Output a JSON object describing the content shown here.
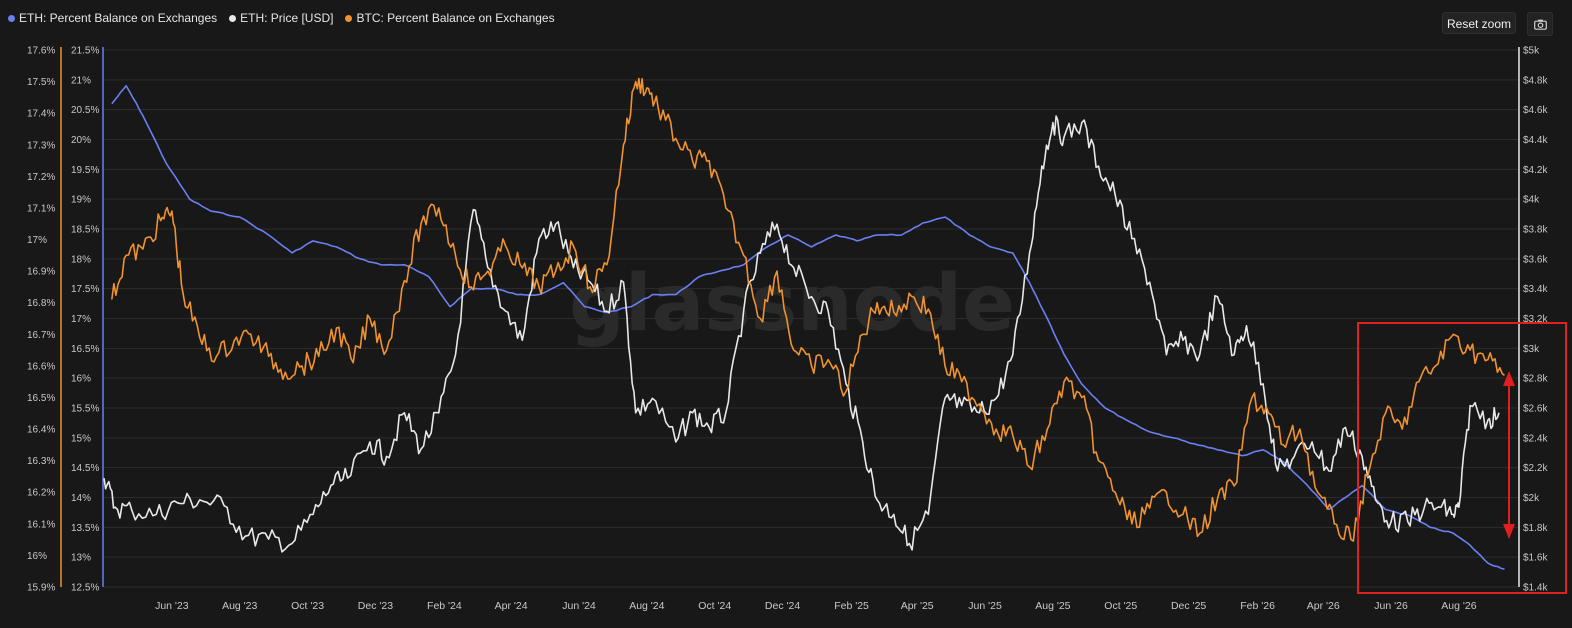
{
  "legend": [
    {
      "label": "ETH: Percent Balance on Exchanges",
      "color": "#6a7ff2"
    },
    {
      "label": "ETH: Price [USD]",
      "color": "#e8e8e8"
    },
    {
      "label": "BTC: Percent Balance on Exchanges",
      "color": "#f0922e"
    }
  ],
  "toolbar": {
    "reset_zoom_label": "Reset zoom",
    "camera_icon": "camera-icon"
  },
  "watermark": "glassnode",
  "colors": {
    "background": "#181818",
    "grid": "#2c2c2c",
    "eth_balance": "#6a7ff2",
    "eth_price": "#e8e8e8",
    "btc_balance": "#f0922e",
    "highlight": "#e02020"
  },
  "chart_data": {
    "type": "line",
    "x_range": [
      "2023-04-15",
      "2026-10-08"
    ],
    "x_ticks": [
      {
        "date": "2023-06-15",
        "label": "Jun '23"
      },
      {
        "date": "2023-08-15",
        "label": "Aug '23"
      },
      {
        "date": "2023-10-15",
        "label": "Oct '23"
      },
      {
        "date": "2023-12-15",
        "label": "Dec '23"
      },
      {
        "date": "2024-02-15",
        "label": "Feb '24"
      },
      {
        "date": "2024-04-15",
        "label": "Apr '24"
      },
      {
        "date": "2024-06-15",
        "label": "Jun '24"
      },
      {
        "date": "2024-08-15",
        "label": "Aug '24"
      },
      {
        "date": "2024-10-15",
        "label": "Oct '24"
      },
      {
        "date": "2024-12-15",
        "label": "Dec '24"
      },
      {
        "date": "2025-02-15",
        "label": "Feb '25"
      },
      {
        "date": "2025-04-15",
        "label": "Apr '25"
      },
      {
        "date": "2025-06-15",
        "label": "Jun '25"
      },
      {
        "date": "2025-08-15",
        "label": "Aug '25"
      },
      {
        "date": "2025-10-15",
        "label": "Oct '25"
      },
      {
        "date": "2025-12-15",
        "label": "Dec '25"
      },
      {
        "date": "2026-02-15",
        "label": "Feb '26"
      },
      {
        "date": "2026-04-15",
        "label": "Apr '26"
      },
      {
        "date": "2026-06-15",
        "label": "Jun '26"
      },
      {
        "date": "2026-08-15",
        "label": "Aug '26"
      }
    ],
    "axes": {
      "btc_balance": {
        "position": "left-outer",
        "min": 15.9,
        "max": 17.6,
        "ticks": [
          "17.6%",
          "17.5%",
          "17.4%",
          "17.3%",
          "17.2%",
          "17.1%",
          "17%",
          "16.9%",
          "16.8%",
          "16.7%",
          "16.6%",
          "16.5%",
          "16.4%",
          "16.3%",
          "16.2%",
          "16.1%",
          "16%",
          "15.9%"
        ]
      },
      "eth_balance": {
        "position": "left-inner",
        "min": 12.5,
        "max": 21.5,
        "ticks": [
          "21.5%",
          "21%",
          "20.5%",
          "20%",
          "19.5%",
          "19%",
          "18.5%",
          "18%",
          "17.5%",
          "17%",
          "16.5%",
          "16%",
          "15.5%",
          "15%",
          "14.5%",
          "14%",
          "13.5%",
          "13%",
          "12.5%"
        ]
      },
      "eth_price": {
        "position": "right",
        "min": 1300,
        "max": 5000,
        "ticks": [
          "$5k",
          "$4.8k",
          "$4.6k",
          "$4.4k",
          "$4.2k",
          "$4k",
          "$3.8k",
          "$3.6k",
          "$3.4k",
          "$3.2k",
          "$3k",
          "$2.8k",
          "$2.6k",
          "$2.4k",
          "$2.2k",
          "$2k",
          "$1.8k",
          "$1.6k",
          "$1.4k"
        ]
      }
    },
    "grid": true,
    "legend_placement": "top-left",
    "series": [
      {
        "name": "ETH: Percent Balance on Exchanges",
        "axis": "eth_balance",
        "x": [
          "2023-04-22",
          "2023-05-05",
          "2023-05-20",
          "2023-06-10",
          "2023-07-01",
          "2023-07-20",
          "2023-08-15",
          "2023-09-10",
          "2023-10-01",
          "2023-10-20",
          "2023-11-10",
          "2023-12-01",
          "2023-12-20",
          "2024-01-10",
          "2024-02-01",
          "2024-02-20",
          "2024-03-10",
          "2024-04-01",
          "2024-04-20",
          "2024-05-10",
          "2024-06-01",
          "2024-06-20",
          "2024-07-10",
          "2024-08-01",
          "2024-08-20",
          "2024-09-10",
          "2024-10-01",
          "2024-10-20",
          "2024-11-10",
          "2024-12-01",
          "2024-12-20",
          "2025-01-10",
          "2025-02-01",
          "2025-02-20",
          "2025-03-10",
          "2025-04-01",
          "2025-04-20",
          "2025-05-10",
          "2025-06-01",
          "2025-06-20",
          "2025-07-10",
          "2025-07-25",
          "2025-08-10",
          "2025-08-25",
          "2025-09-10",
          "2025-10-01",
          "2025-10-20",
          "2025-11-10",
          "2025-12-01",
          "2025-12-20",
          "2026-01-10",
          "2026-02-01",
          "2026-02-20",
          "2026-03-10",
          "2026-04-01",
          "2026-04-20",
          "2026-05-05",
          "2026-05-20",
          "2026-06-10",
          "2026-07-01",
          "2026-07-20",
          "2026-08-10",
          "2026-08-25",
          "2026-09-10",
          "2026-09-25"
        ],
        "values": [
          20.6,
          20.9,
          20.4,
          19.6,
          19.0,
          18.8,
          18.7,
          18.4,
          18.1,
          18.3,
          18.2,
          18.0,
          17.9,
          17.9,
          17.7,
          17.2,
          17.5,
          17.5,
          17.4,
          17.4,
          17.6,
          17.2,
          17.1,
          17.2,
          17.4,
          17.4,
          17.7,
          17.8,
          17.9,
          18.2,
          18.4,
          18.2,
          18.4,
          18.3,
          18.4,
          18.4,
          18.6,
          18.7,
          18.4,
          18.2,
          18.1,
          17.6,
          17.0,
          16.4,
          15.9,
          15.5,
          15.3,
          15.1,
          15.0,
          14.9,
          14.8,
          14.7,
          14.8,
          14.6,
          14.2,
          13.8,
          14.0,
          14.2,
          13.8,
          13.7,
          13.5,
          13.4,
          13.2,
          12.9,
          12.8
        ]
      },
      {
        "name": "ETH: Price [USD]",
        "axis": "eth_price",
        "x": [
          "2023-04-15",
          "2023-04-25",
          "2023-05-10",
          "2023-06-01",
          "2023-06-20",
          "2023-07-10",
          "2023-08-01",
          "2023-08-20",
          "2023-09-10",
          "2023-10-01",
          "2023-10-20",
          "2023-11-05",
          "2023-11-20",
          "2023-12-10",
          "2023-12-25",
          "2024-01-10",
          "2024-01-25",
          "2024-02-10",
          "2024-02-25",
          "2024-03-12",
          "2024-03-25",
          "2024-04-10",
          "2024-04-25",
          "2024-05-10",
          "2024-05-25",
          "2024-06-10",
          "2024-06-25",
          "2024-07-10",
          "2024-07-25",
          "2024-08-05",
          "2024-08-20",
          "2024-09-10",
          "2024-09-25",
          "2024-10-10",
          "2024-10-25",
          "2024-11-10",
          "2024-11-25",
          "2024-12-10",
          "2024-12-25",
          "2025-01-10",
          "2025-01-25",
          "2025-02-10",
          "2025-02-25",
          "2025-03-10",
          "2025-03-25",
          "2025-04-08",
          "2025-04-25",
          "2025-05-10",
          "2025-05-25",
          "2025-06-10",
          "2025-06-25",
          "2025-07-10",
          "2025-07-25",
          "2025-08-05",
          "2025-08-15",
          "2025-08-25",
          "2025-09-10",
          "2025-09-25",
          "2025-10-10",
          "2025-10-25",
          "2025-11-10",
          "2025-11-25",
          "2025-12-10",
          "2025-12-25",
          "2026-01-10",
          "2026-01-25",
          "2026-02-05",
          "2026-02-20",
          "2026-03-05",
          "2026-03-20",
          "2026-04-05",
          "2026-04-20",
          "2026-05-05",
          "2026-05-20",
          "2026-06-01",
          "2026-06-15",
          "2026-06-30",
          "2026-07-15",
          "2026-07-30",
          "2026-08-10",
          "2026-08-15",
          "2026-08-25",
          "2026-09-10",
          "2026-09-20"
        ],
        "values": [
          2050,
          1850,
          1830,
          1800,
          1880,
          1900,
          1860,
          1650,
          1630,
          1600,
          1800,
          2000,
          2050,
          2300,
          2200,
          2500,
          2250,
          2500,
          2900,
          3900,
          3500,
          3200,
          3000,
          3700,
          3800,
          3500,
          3400,
          3200,
          3400,
          2500,
          2600,
          2300,
          2500,
          2400,
          2500,
          3200,
          3600,
          3800,
          3500,
          3300,
          3200,
          2700,
          2300,
          1900,
          1800,
          1600,
          1800,
          2600,
          2550,
          2500,
          2600,
          2900,
          3600,
          4200,
          4500,
          4400,
          4500,
          4200,
          4000,
          3700,
          3400,
          2900,
          3000,
          2900,
          3300,
          2900,
          3100,
          2700,
          2100,
          2200,
          2300,
          2100,
          2400,
          2200,
          1900,
          1750,
          1750,
          1850,
          1850,
          1800,
          1850,
          2550,
          2450,
          2500
        ]
      },
      {
        "name": "BTC: Percent Balance on Exchanges",
        "axis": "btc_balance",
        "x": [
          "2023-04-22",
          "2023-05-05",
          "2023-05-20",
          "2023-06-05",
          "2023-06-15",
          "2023-06-25",
          "2023-07-10",
          "2023-07-25",
          "2023-08-10",
          "2023-08-25",
          "2023-09-10",
          "2023-09-25",
          "2023-10-10",
          "2023-10-25",
          "2023-11-10",
          "2023-11-25",
          "2023-12-10",
          "2023-12-25",
          "2024-01-10",
          "2024-01-25",
          "2024-02-10",
          "2024-02-25",
          "2024-03-10",
          "2024-03-25",
          "2024-04-10",
          "2024-04-25",
          "2024-05-10",
          "2024-05-25",
          "2024-06-10",
          "2024-06-25",
          "2024-07-10",
          "2024-07-25",
          "2024-08-05",
          "2024-08-15",
          "2024-08-25",
          "2024-09-10",
          "2024-09-25",
          "2024-10-10",
          "2024-10-25",
          "2024-11-10",
          "2024-11-25",
          "2024-12-10",
          "2024-12-25",
          "2025-01-10",
          "2025-01-25",
          "2025-02-10",
          "2025-02-25",
          "2025-03-10",
          "2025-03-25",
          "2025-04-10",
          "2025-04-25",
          "2025-05-10",
          "2025-05-25",
          "2025-06-10",
          "2025-06-25",
          "2025-07-10",
          "2025-07-25",
          "2025-08-10",
          "2025-08-25",
          "2025-09-10",
          "2025-09-25",
          "2025-10-10",
          "2025-10-25",
          "2025-11-10",
          "2025-11-25",
          "2025-12-10",
          "2025-12-25",
          "2026-01-10",
          "2026-01-25",
          "2026-02-10",
          "2026-02-25",
          "2026-03-10",
          "2026-03-25",
          "2026-04-10",
          "2026-04-25",
          "2026-05-10",
          "2026-05-25",
          "2026-06-10",
          "2026-06-25",
          "2026-07-10",
          "2026-07-25",
          "2026-08-10",
          "2026-08-25",
          "2026-09-10",
          "2026-09-25"
        ],
        "values": [
          16.81,
          16.95,
          16.97,
          17.06,
          17.09,
          16.83,
          16.69,
          16.63,
          16.68,
          16.7,
          16.63,
          16.58,
          16.6,
          16.63,
          16.72,
          16.61,
          16.75,
          16.65,
          16.87,
          17.05,
          17.1,
          16.95,
          16.85,
          16.9,
          16.98,
          16.91,
          16.85,
          16.9,
          16.98,
          16.85,
          16.92,
          17.3,
          17.5,
          17.48,
          17.42,
          17.32,
          17.25,
          17.25,
          17.1,
          16.95,
          16.75,
          16.9,
          16.65,
          16.6,
          16.62,
          16.52,
          16.7,
          16.8,
          16.77,
          16.82,
          16.78,
          16.6,
          16.55,
          16.48,
          16.4,
          16.38,
          16.28,
          16.4,
          16.55,
          16.5,
          16.3,
          16.2,
          16.1,
          16.15,
          16.2,
          16.13,
          16.07,
          16.18,
          16.22,
          16.5,
          16.45,
          16.35,
          16.4,
          16.2,
          16.1,
          16.05,
          16.25,
          16.45,
          16.4,
          16.55,
          16.6,
          16.7,
          16.65,
          16.62,
          16.57
        ]
      }
    ]
  }
}
